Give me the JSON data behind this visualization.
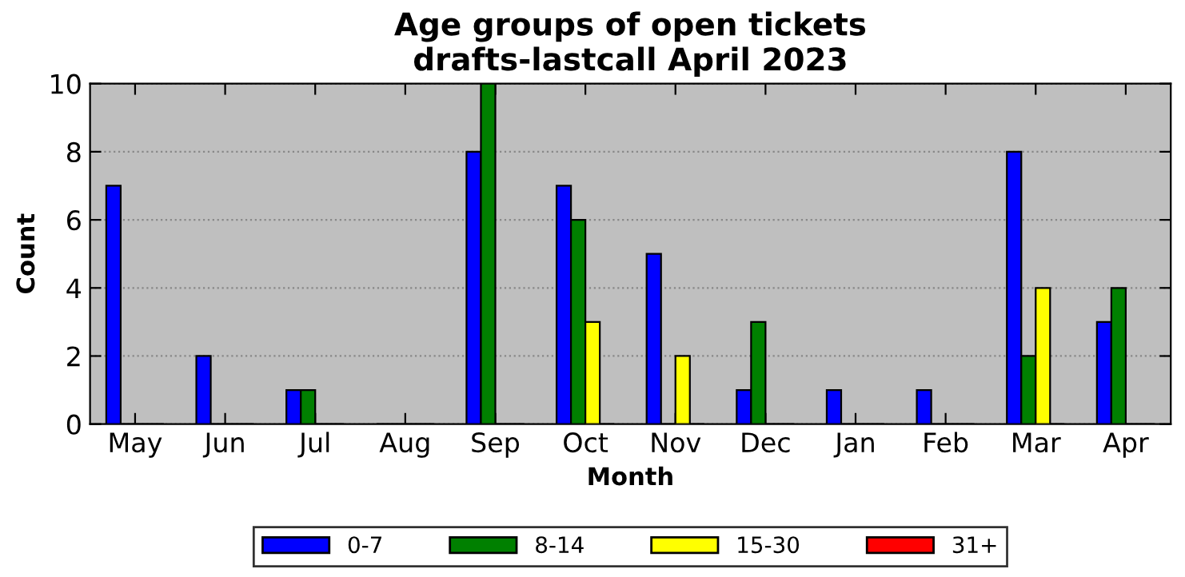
{
  "chart_data": {
    "type": "bar",
    "title": "Age groups of open tickets\ndrafts-lastcall April 2023",
    "xlabel": "Month",
    "ylabel": "Count",
    "categories": [
      "May",
      "Jun",
      "Jul",
      "Aug",
      "Sep",
      "Oct",
      "Nov",
      "Dec",
      "Jan",
      "Feb",
      "Mar",
      "Apr"
    ],
    "series": [
      {
        "name": "0-7",
        "color": "#0000ff",
        "values": [
          7,
          2,
          1,
          0,
          8,
          7,
          5,
          1,
          1,
          1,
          8,
          3
        ]
      },
      {
        "name": "8-14",
        "color": "#008000",
        "values": [
          0,
          0,
          1,
          0,
          10,
          6,
          0,
          3,
          0,
          0,
          2,
          4
        ]
      },
      {
        "name": "15-30",
        "color": "#ffff00",
        "values": [
          0,
          0,
          0,
          0,
          0,
          3,
          2,
          0,
          0,
          0,
          4,
          0
        ]
      },
      {
        "name": "31+",
        "color": "#ff0000",
        "values": [
          0,
          0,
          0,
          0,
          0,
          0,
          0,
          0,
          0,
          0,
          0,
          0
        ]
      }
    ],
    "ylim": [
      0,
      10
    ],
    "yticks": [
      0,
      2,
      4,
      6,
      8,
      10
    ],
    "grid": "y",
    "legend": "bottom"
  }
}
